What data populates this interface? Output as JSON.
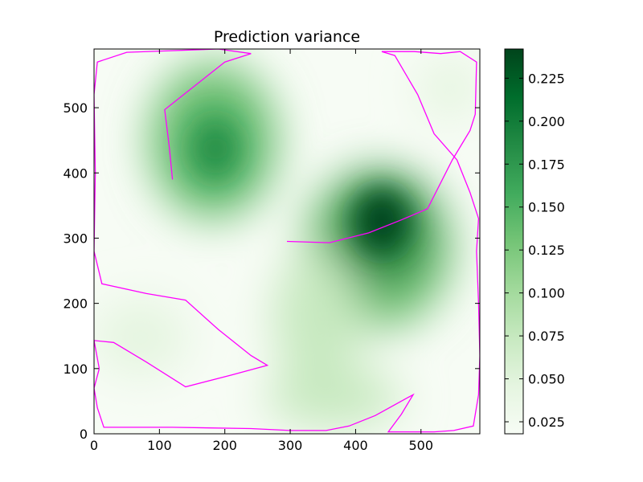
{
  "chart_data": {
    "type": "heatmap",
    "title": "Prediction variance",
    "xlabel": "",
    "ylabel": "",
    "xlim": [
      0,
      590
    ],
    "ylim": [
      0,
      590
    ],
    "x_ticks": [
      0,
      100,
      200,
      300,
      400,
      500
    ],
    "y_ticks": [
      0,
      100,
      200,
      300,
      400,
      500
    ],
    "colormap": "Greens",
    "colorbar": {
      "range": [
        0.018,
        0.242
      ],
      "ticks": [
        "0.025",
        "0.050",
        "0.075",
        "0.100",
        "0.125",
        "0.150",
        "0.175",
        "0.200",
        "0.225"
      ]
    },
    "path_color": "#ff00ff",
    "variance_peaks": [
      {
        "x": 440,
        "y": 330,
        "value": 0.242
      },
      {
        "x": 190,
        "y": 440,
        "value": 0.185
      },
      {
        "x": 350,
        "y": 170,
        "value": 0.11
      },
      {
        "x": 380,
        "y": 50,
        "value": 0.08
      },
      {
        "x": 120,
        "y": 300,
        "value": 0.045
      }
    ],
    "paths": [
      {
        "points": [
          [
            120,
            390
          ],
          [
            115,
            440
          ],
          [
            108,
            497
          ],
          [
            200,
            570
          ],
          [
            240,
            583
          ],
          [
            190,
            590
          ],
          [
            50,
            585
          ],
          [
            5,
            570
          ],
          [
            0,
            520
          ],
          [
            2,
            400
          ],
          [
            0,
            280
          ],
          [
            12,
            230
          ],
          [
            80,
            215
          ],
          [
            140,
            205
          ],
          [
            190,
            160
          ],
          [
            240,
            120
          ],
          [
            265,
            105
          ],
          [
            210,
            90
          ],
          [
            140,
            72
          ],
          [
            80,
            110
          ],
          [
            30,
            140
          ],
          [
            0,
            143
          ]
        ]
      },
      {
        "points": [
          [
            0,
            143
          ],
          [
            8,
            100
          ],
          [
            0,
            70
          ],
          [
            5,
            40
          ],
          [
            15,
            10
          ],
          [
            120,
            10
          ],
          [
            240,
            8
          ],
          [
            300,
            5
          ],
          [
            355,
            5
          ],
          [
            390,
            12
          ],
          [
            430,
            28
          ],
          [
            488,
            60
          ],
          [
            470,
            30
          ],
          [
            450,
            3
          ],
          [
            520,
            3
          ],
          [
            550,
            5
          ],
          [
            580,
            12
          ],
          [
            588,
            60
          ],
          [
            590,
            120
          ],
          [
            588,
            200
          ],
          [
            585,
            280
          ],
          [
            588,
            330
          ],
          [
            575,
            370
          ],
          [
            555,
            420
          ],
          [
            520,
            460
          ],
          [
            495,
            520
          ],
          [
            460,
            580
          ],
          [
            440,
            586
          ],
          [
            490,
            586
          ],
          [
            530,
            583
          ],
          [
            560,
            586
          ],
          [
            585,
            570
          ],
          [
            583,
            490
          ],
          [
            575,
            465
          ],
          [
            548,
            420
          ],
          [
            510,
            345
          ],
          [
            470,
            328
          ],
          [
            420,
            308
          ],
          [
            360,
            293
          ],
          [
            295,
            295
          ]
        ]
      }
    ]
  }
}
